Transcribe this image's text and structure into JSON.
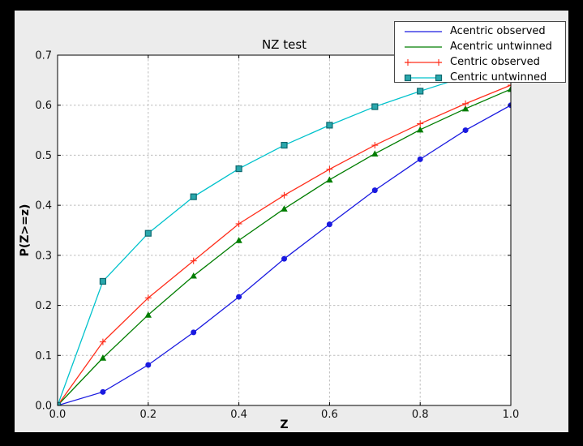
{
  "page": {
    "background": "#000000",
    "figure_background": "#ececec",
    "plot_background": "#ffffff"
  },
  "chart_data": {
    "type": "line",
    "title": "NZ test",
    "xlabel": "Z",
    "ylabel": "P(Z>=z)",
    "xlim": [
      0.0,
      1.0
    ],
    "ylim": [
      0.0,
      0.7
    ],
    "x_ticks": [
      "0.0",
      "0.2",
      "0.4",
      "0.6",
      "0.8",
      "1.0"
    ],
    "y_ticks": [
      "0.0",
      "0.1",
      "0.2",
      "0.3",
      "0.4",
      "0.5",
      "0.6",
      "0.7"
    ],
    "grid": true,
    "grid_style": "dashed",
    "grid_color": "#bdbdbd",
    "legend_position": "upper right",
    "x": [
      0.0,
      0.1,
      0.2,
      0.3,
      0.4,
      0.5,
      0.6,
      0.7,
      0.8,
      0.9,
      1.0
    ],
    "series": [
      {
        "name": "Acentric observed",
        "color": "#1a1ae0",
        "marker": "circle",
        "legend_markers": false,
        "values": [
          0.0,
          0.027,
          0.081,
          0.146,
          0.217,
          0.293,
          0.362,
          0.43,
          0.492,
          0.55,
          0.6
        ]
      },
      {
        "name": "Acentric untwinned",
        "color": "#007d00",
        "marker": "triangle-up",
        "legend_markers": false,
        "values": [
          0.0,
          0.095,
          0.181,
          0.259,
          0.33,
          0.393,
          0.451,
          0.503,
          0.551,
          0.593,
          0.632
        ]
      },
      {
        "name": "Centric observed",
        "color": "#ff2d1a",
        "marker": "plus",
        "legend_markers": true,
        "values": [
          0.0,
          0.127,
          0.215,
          0.289,
          0.363,
          0.42,
          0.472,
          0.52,
          0.563,
          0.603,
          0.64
        ]
      },
      {
        "name": "Centric untwinned",
        "color": "#00c2cc",
        "marker": "square",
        "marker_fill": "#2aa7ac",
        "marker_edge": "#0e686e",
        "legend_markers": true,
        "values": [
          0.0,
          0.248,
          0.344,
          0.417,
          0.473,
          0.52,
          0.56,
          0.597,
          0.628,
          0.657,
          0.683
        ]
      }
    ]
  }
}
